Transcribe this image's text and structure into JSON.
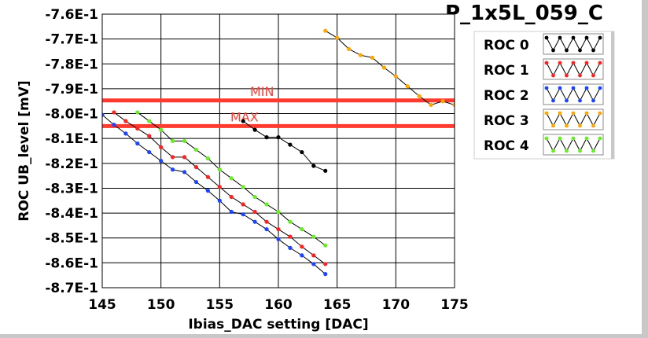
{
  "title": "P_1x5L_059_C",
  "chart_data": {
    "type": "line",
    "title": "P_1x5L_059_C",
    "xlabel": "Ibias_DAC setting [DAC]",
    "ylabel": "ROC UB_level [mV]",
    "xlim": [
      145,
      175
    ],
    "ylim": [
      -0.87,
      -0.76
    ],
    "x_ticks": [
      145,
      150,
      155,
      160,
      165,
      170,
      175
    ],
    "x_tick_labels": [
      "145",
      "150",
      "155",
      "160",
      "165",
      "170",
      "175"
    ],
    "y_ticks": [
      -0.76,
      -0.77,
      -0.78,
      -0.79,
      -0.8,
      -0.81,
      -0.82,
      -0.83,
      -0.84,
      -0.85,
      -0.86,
      -0.87
    ],
    "y_tick_labels": [
      "-7.6E-1",
      "-7.7E-1",
      "-7.8E-1",
      "-7.9E-1",
      "-8.0E-1",
      "-8.1E-1",
      "-8.2E-1",
      "-8.3E-1",
      "-8.4E-1",
      "-8.5E-1",
      "-8.6E-1",
      "-8.7E-1"
    ],
    "grid": true,
    "legend_position": "top-right",
    "thresholds": [
      {
        "label": "MIN",
        "y": -0.7947,
        "color": "#ff3b30"
      },
      {
        "label": "MAX",
        "y": -0.805,
        "color": "#ff3b30"
      }
    ],
    "series": [
      {
        "name": "ROC 0",
        "color": "#000000",
        "x": [
          157,
          158,
          159,
          160,
          161,
          162,
          163,
          164
        ],
        "y": [
          -0.803,
          -0.8065,
          -0.8095,
          -0.8095,
          -0.8125,
          -0.8155,
          -0.821,
          -0.823
        ]
      },
      {
        "name": "ROC 1",
        "color": "#ff2020",
        "x": [
          146,
          147,
          148,
          149,
          150,
          151,
          152,
          153,
          154,
          155,
          156,
          157,
          158,
          159,
          160,
          161,
          162,
          163,
          164
        ],
        "y": [
          -0.7995,
          -0.803,
          -0.806,
          -0.809,
          -0.8135,
          -0.8175,
          -0.8175,
          -0.8215,
          -0.8255,
          -0.8295,
          -0.8335,
          -0.8365,
          -0.8395,
          -0.8435,
          -0.8465,
          -0.8495,
          -0.8535,
          -0.857,
          -0.8605
        ]
      },
      {
        "name": "ROC 2",
        "color": "#1a44ff",
        "x": [
          145,
          146,
          147,
          148,
          149,
          150,
          151,
          152,
          153,
          154,
          155,
          156,
          157,
          158,
          159,
          160,
          161,
          162,
          163,
          164
        ],
        "y": [
          -0.8005,
          -0.8045,
          -0.808,
          -0.812,
          -0.8155,
          -0.819,
          -0.8225,
          -0.8235,
          -0.8275,
          -0.831,
          -0.835,
          -0.8395,
          -0.8405,
          -0.8435,
          -0.8465,
          -0.8505,
          -0.854,
          -0.857,
          -0.8605,
          -0.8645
        ]
      },
      {
        "name": "ROC 3",
        "color": "#ffa500",
        "x": [
          164,
          165,
          166,
          167,
          168,
          169,
          170,
          171,
          172,
          173,
          174,
          175
        ],
        "y": [
          -0.7667,
          -0.7695,
          -0.774,
          -0.7765,
          -0.7775,
          -0.7815,
          -0.785,
          -0.789,
          -0.793,
          -0.7965,
          -0.795,
          -0.7965
        ]
      },
      {
        "name": "ROC 4",
        "color": "#66ee22",
        "x": [
          148,
          149,
          150,
          151,
          152,
          153,
          154,
          155,
          156,
          157,
          158,
          159,
          160,
          161,
          162,
          163,
          164
        ],
        "y": [
          -0.7995,
          -0.803,
          -0.8065,
          -0.811,
          -0.811,
          -0.8145,
          -0.818,
          -0.8225,
          -0.826,
          -0.8295,
          -0.8335,
          -0.8365,
          -0.8395,
          -0.8435,
          -0.8465,
          -0.8495,
          -0.853
        ]
      }
    ]
  }
}
